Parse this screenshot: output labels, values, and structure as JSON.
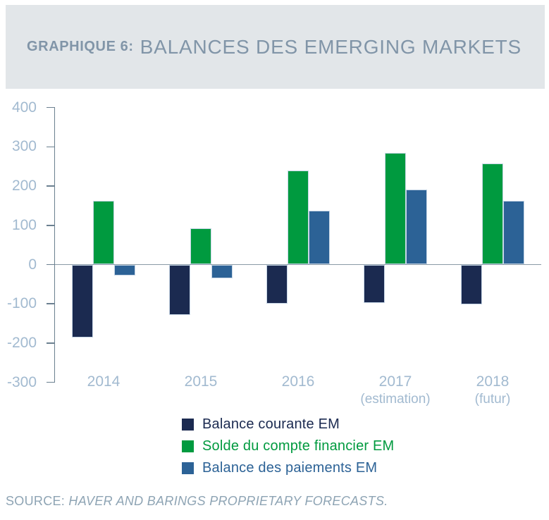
{
  "header": {
    "label": "GRAPHIQUE 6:",
    "title": "BALANCES DES EMERGING MARKETS"
  },
  "source": {
    "prefix": "SOURCE: ",
    "text": "HAVER AND BARINGS PROPRIETARY FORECASTS."
  },
  "colors": {
    "header_bg": "#e2e6e9",
    "title": "#8195a8",
    "axis_line": "#6b8090",
    "zero_line": "#8a9aa6",
    "tick_label": "#a2bad0",
    "bar_border": "#c7d6e6",
    "source": "#8ea4b4",
    "navy": "#1b2a50",
    "green": "#009a3f",
    "steel": "#2c6296"
  },
  "chart_data": {
    "type": "bar",
    "categories": [
      "2014",
      "2015",
      "2016",
      "2017",
      "2018"
    ],
    "category_sublabels": [
      "",
      "",
      "",
      "(estimation)",
      "(futur)"
    ],
    "series": [
      {
        "name": "Balance courante EM",
        "color": "#1b2a50",
        "values": [
          -185,
          -128,
          -100,
          -97,
          -101
        ]
      },
      {
        "name": "Solde du compte financier EM",
        "color": "#009a3f",
        "values": [
          163,
          93,
          239,
          285,
          258
        ]
      },
      {
        "name": "Balance des paiements EM",
        "color": "#2c6296",
        "values": [
          -28,
          -35,
          137,
          192,
          163
        ]
      }
    ],
    "ylim": [
      -300,
      400
    ],
    "yticks": [
      400,
      300,
      200,
      100,
      0,
      -100,
      -200,
      -300
    ],
    "grid": false,
    "legend_position": "bottom-center"
  }
}
